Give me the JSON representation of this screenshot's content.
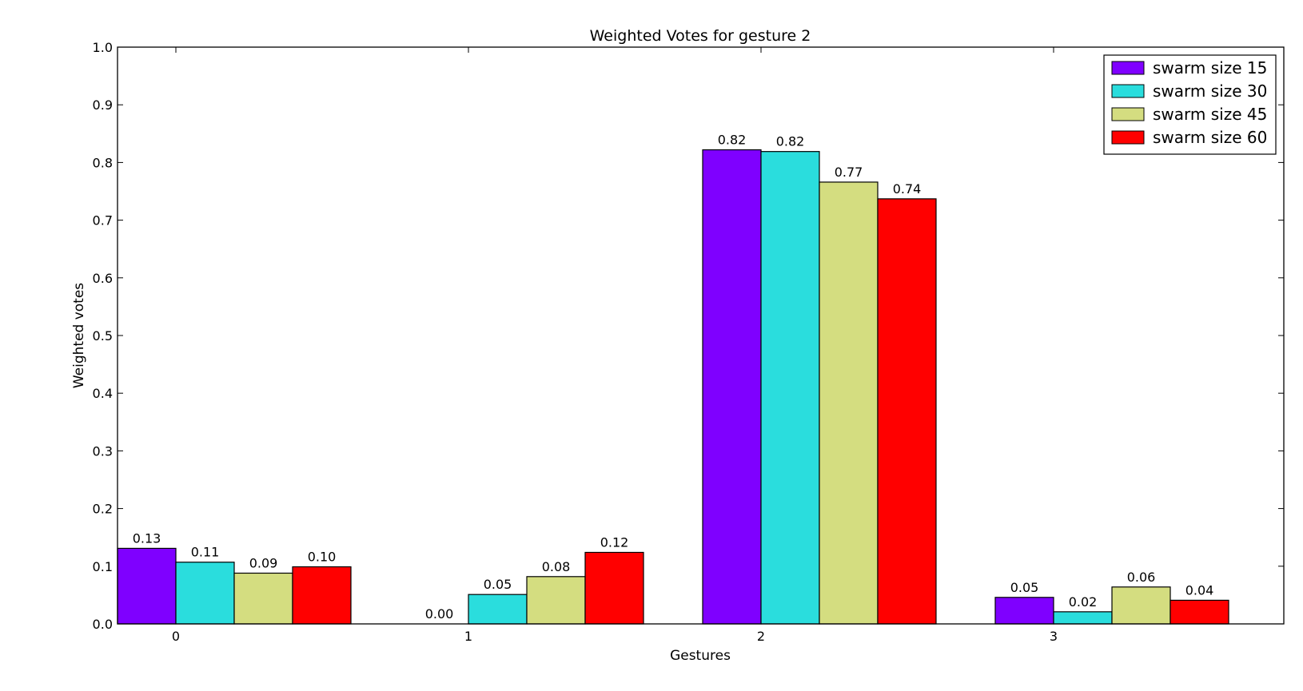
{
  "chart_data": {
    "type": "bar",
    "title": "Weighted Votes for gesture 2",
    "xlabel": "Gestures",
    "ylabel": "Weighted votes",
    "categories": [
      "0",
      "1",
      "2",
      "3"
    ],
    "ylim": [
      0,
      1.0
    ],
    "yticks": [
      "0.0",
      "0.1",
      "0.2",
      "0.3",
      "0.4",
      "0.5",
      "0.6",
      "0.7",
      "0.8",
      "0.9",
      "1.0"
    ],
    "grid": false,
    "legend_position": "top-right",
    "series": [
      {
        "name": "swarm size 15",
        "color": "#7f00ff",
        "values": [
          0.131,
          0.0,
          0.822,
          0.046
        ],
        "labels": [
          "0.13",
          "0.00",
          "0.82",
          "0.05"
        ]
      },
      {
        "name": "swarm size 30",
        "color": "#2adddd",
        "values": [
          0.107,
          0.051,
          0.819,
          0.021
        ],
        "labels": [
          "0.11",
          "0.05",
          "0.82",
          "0.02"
        ]
      },
      {
        "name": "swarm size 45",
        "color": "#d4dd80",
        "values": [
          0.088,
          0.082,
          0.766,
          0.064
        ],
        "labels": [
          "0.09",
          "0.08",
          "0.77",
          "0.06"
        ]
      },
      {
        "name": "swarm size 60",
        "color": "#ff0000",
        "values": [
          0.099,
          0.124,
          0.737,
          0.041
        ],
        "labels": [
          "0.10",
          "0.12",
          "0.74",
          "0.04"
        ]
      }
    ]
  }
}
